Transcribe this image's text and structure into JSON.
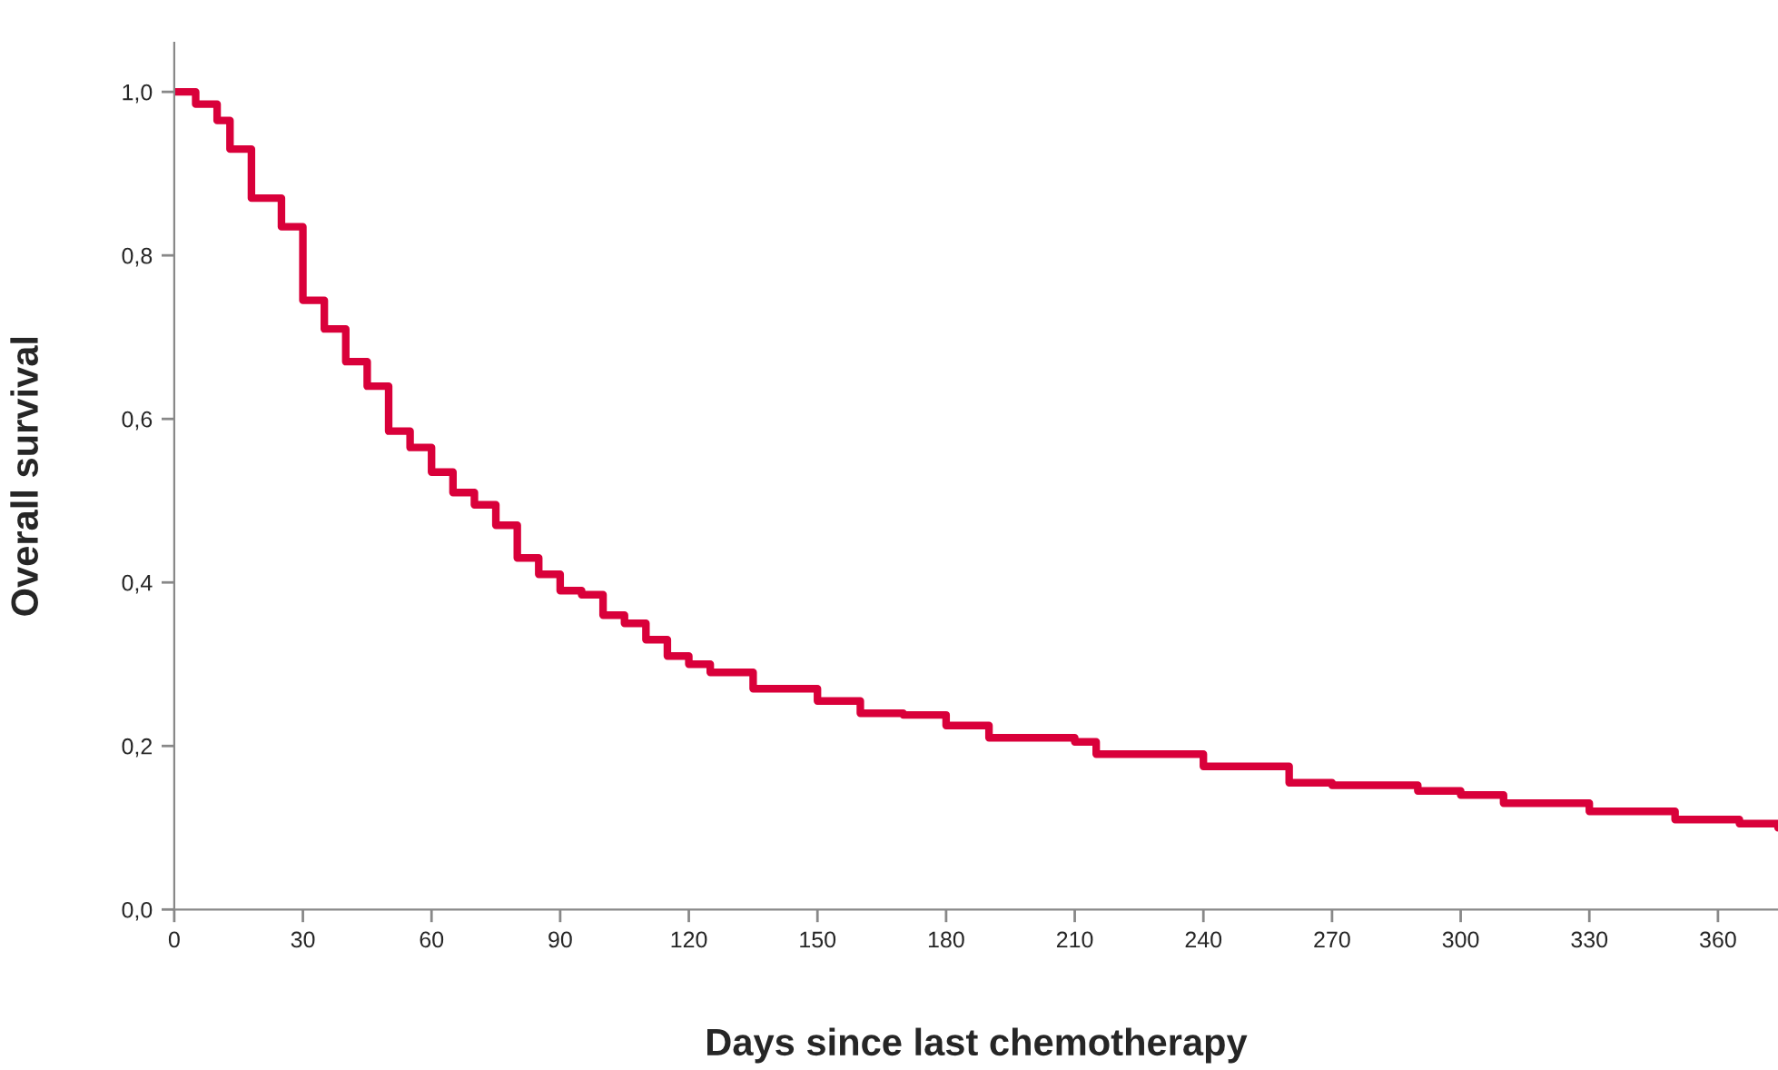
{
  "chart_data": {
    "type": "step",
    "xlabel": "Days since last chemotherapy",
    "ylabel": "Overall survival",
    "x": [
      0,
      5,
      10,
      13,
      18,
      25,
      30,
      35,
      40,
      45,
      50,
      55,
      60,
      65,
      70,
      75,
      80,
      85,
      90,
      95,
      100,
      105,
      110,
      115,
      120,
      125,
      130,
      135,
      150,
      160,
      170,
      180,
      190,
      210,
      215,
      240,
      260,
      270,
      290,
      300,
      310,
      330,
      350,
      365,
      374
    ],
    "series": [
      {
        "color": "#d9003a",
        "values": [
          1.0,
          0.985,
          0.965,
          0.93,
          0.87,
          0.835,
          0.745,
          0.71,
          0.67,
          0.64,
          0.585,
          0.565,
          0.535,
          0.51,
          0.495,
          0.47,
          0.43,
          0.41,
          0.39,
          0.385,
          0.36,
          0.35,
          0.33,
          0.31,
          0.3,
          0.29,
          0.29,
          0.27,
          0.255,
          0.24,
          0.238,
          0.225,
          0.21,
          0.205,
          0.19,
          0.175,
          0.155,
          0.152,
          0.145,
          0.14,
          0.13,
          0.12,
          0.11,
          0.105,
          0.1
        ]
      }
    ],
    "xlim": [
      0,
      374
    ],
    "xticks": [
      0,
      30,
      60,
      90,
      120,
      150,
      180,
      210,
      240,
      270,
      300,
      330,
      360
    ],
    "ylim": [
      0,
      1.06
    ],
    "yticks": [
      {
        "value": 0,
        "label": "0,0"
      },
      {
        "value": 0.2,
        "label": "0,2"
      },
      {
        "value": 0.4,
        "label": "0,4"
      },
      {
        "value": 0.6,
        "label": "0,6"
      },
      {
        "value": 0.8,
        "label": "0,8"
      },
      {
        "value": 1.0,
        "label": "1,0"
      }
    ],
    "grid": false,
    "legend": false,
    "marker": "none",
    "line_style": "solid"
  }
}
